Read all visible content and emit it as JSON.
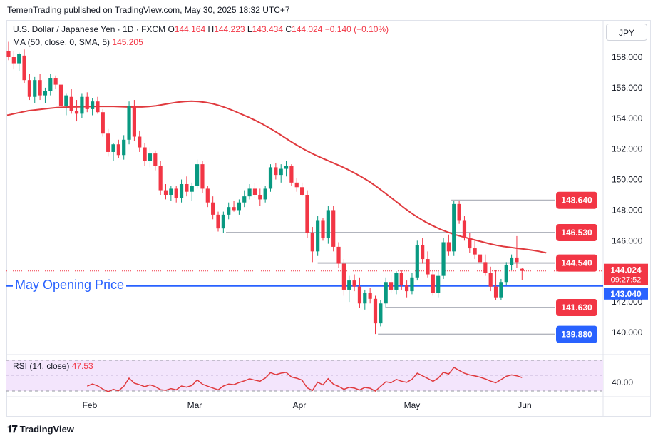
{
  "header": {
    "published": "TemenTrading published on TradingView.com, May 30, 2025 18:32 UTC+7"
  },
  "legend": {
    "symbol": "U.S. Dollar / Japanese Yen · 1D · FXCM",
    "o_label": "O",
    "o_value": "144.164",
    "h_label": "H",
    "h_value": "144.223",
    "l_label": "L",
    "l_value": "143.434",
    "c_label": "C",
    "c_value": "144.024",
    "change": "−0.140 (−0.10%)",
    "ma_label": "MA (50, close, 0, SMA, 5)",
    "ma_value": "145.205",
    "rsi_label": "RSI (14, close)",
    "rsi_value": "47.53"
  },
  "currency": "JPY",
  "annotation": {
    "opening_price_label": "May Opening Price",
    "opening_price": 143.04
  },
  "colors": {
    "up": "#089981",
    "down": "#f23645",
    "ma": "#e03a3e",
    "opening_line": "#2962ff",
    "level_line": "#b2b5be",
    "rsi_line": "#e03a3e",
    "rsi_band": "#f3e5fc"
  },
  "footer": {
    "brand": "TradingView"
  },
  "chart_data": {
    "type": "candlestick",
    "ylim": [
      138.9,
      159.5
    ],
    "y_ticks": [
      "158.000",
      "156.000",
      "154.000",
      "152.000",
      "150.000",
      "148.000",
      "146.000",
      "144.000",
      "142.000",
      "140.000"
    ],
    "x_ticks": [
      "Feb",
      "Mar",
      "Apr",
      "May",
      "Jun"
    ],
    "levels": [
      {
        "label": "148.640",
        "value": 148.64,
        "color": "#f23645"
      },
      {
        "label": "146.530",
        "value": 146.53,
        "color": "#f23645"
      },
      {
        "label": "144.540",
        "value": 144.54,
        "color": "#f23645"
      },
      {
        "label": "141.630",
        "value": 141.63,
        "color": "#f23645"
      },
      {
        "label": "139.880",
        "value": 139.88,
        "color": "#2962ff"
      }
    ],
    "current_price": {
      "label": "144.024",
      "value": 144.024,
      "countdown": "09:27:52"
    },
    "opening_price_tag": {
      "label": "143.040",
      "value": 143.04
    },
    "ohlc": [
      [
        158.4,
        159.0,
        157.8,
        158.0
      ],
      [
        158.0,
        158.4,
        157.2,
        157.6
      ],
      [
        157.6,
        158.3,
        157.1,
        158.2
      ],
      [
        158.1,
        158.5,
        156.3,
        156.5
      ],
      [
        156.5,
        156.9,
        155.2,
        155.4
      ],
      [
        155.4,
        156.7,
        155.0,
        156.5
      ],
      [
        156.5,
        156.9,
        155.2,
        155.5
      ],
      [
        155.5,
        156.0,
        155.0,
        155.8
      ],
      [
        155.8,
        156.9,
        155.5,
        156.6
      ],
      [
        156.6,
        156.8,
        155.9,
        156.2
      ],
      [
        156.2,
        156.4,
        154.6,
        154.8
      ],
      [
        154.8,
        155.6,
        154.2,
        155.5
      ],
      [
        155.4,
        155.9,
        154.3,
        154.5
      ],
      [
        154.5,
        155.2,
        153.8,
        154.3
      ],
      [
        154.3,
        155.6,
        154.0,
        155.4
      ],
      [
        155.4,
        155.7,
        154.4,
        154.6
      ],
      [
        154.6,
        155.3,
        154.2,
        155.1
      ],
      [
        155.1,
        155.4,
        154.3,
        154.4
      ],
      [
        154.4,
        154.6,
        152.8,
        153.0
      ],
      [
        153.0,
        153.3,
        151.5,
        151.8
      ],
      [
        151.8,
        152.4,
        151.2,
        152.3
      ],
      [
        152.3,
        152.6,
        151.4,
        151.6
      ],
      [
        151.6,
        152.9,
        151.3,
        152.6
      ],
      [
        152.6,
        155.1,
        152.3,
        154.8
      ],
      [
        154.8,
        155.2,
        152.5,
        152.8
      ],
      [
        152.8,
        153.2,
        151.8,
        152.1
      ],
      [
        152.1,
        152.4,
        150.9,
        151.2
      ],
      [
        151.2,
        152.1,
        150.8,
        151.7
      ],
      [
        151.7,
        151.9,
        150.6,
        150.9
      ],
      [
        150.9,
        151.2,
        149.0,
        149.3
      ],
      [
        149.3,
        149.7,
        148.7,
        149.0
      ],
      [
        149.0,
        149.6,
        148.6,
        149.4
      ],
      [
        149.4,
        149.6,
        148.5,
        148.8
      ],
      [
        148.8,
        150.0,
        148.5,
        149.7
      ],
      [
        149.7,
        150.2,
        148.9,
        149.2
      ],
      [
        149.2,
        149.8,
        148.6,
        149.6
      ],
      [
        149.6,
        151.3,
        149.4,
        151.0
      ],
      [
        151.0,
        151.2,
        149.1,
        149.4
      ],
      [
        149.4,
        149.6,
        148.2,
        148.5
      ],
      [
        148.5,
        148.9,
        147.4,
        147.7
      ],
      [
        147.7,
        147.9,
        146.6,
        146.8
      ],
      [
        146.8,
        147.9,
        146.5,
        147.7
      ],
      [
        147.7,
        148.5,
        147.4,
        148.2
      ],
      [
        148.2,
        148.6,
        147.9,
        148.0
      ],
      [
        148.0,
        148.7,
        147.7,
        148.5
      ],
      [
        148.5,
        149.3,
        148.2,
        148.9
      ],
      [
        148.9,
        149.7,
        148.7,
        149.4
      ],
      [
        149.4,
        149.8,
        148.8,
        149.0
      ],
      [
        149.0,
        149.4,
        148.3,
        148.7
      ],
      [
        148.7,
        149.6,
        148.5,
        149.4
      ],
      [
        149.4,
        151.0,
        149.2,
        150.8
      ],
      [
        150.8,
        151.1,
        150.0,
        150.3
      ],
      [
        150.3,
        151.0,
        149.8,
        150.7
      ],
      [
        150.7,
        151.2,
        150.2,
        150.9
      ],
      [
        150.9,
        151.0,
        149.6,
        149.8
      ],
      [
        149.8,
        150.1,
        149.2,
        149.5
      ],
      [
        149.5,
        149.8,
        148.9,
        149.0
      ],
      [
        149.0,
        149.3,
        146.2,
        146.5
      ],
      [
        146.5,
        146.9,
        144.6,
        145.3
      ],
      [
        145.3,
        147.6,
        145.0,
        147.3
      ],
      [
        147.3,
        147.5,
        146.0,
        146.2
      ],
      [
        146.2,
        148.3,
        145.8,
        148.0
      ],
      [
        148.0,
        148.3,
        145.3,
        145.6
      ],
      [
        145.6,
        145.9,
        144.2,
        144.5
      ],
      [
        144.5,
        144.8,
        142.4,
        142.8
      ],
      [
        142.8,
        143.7,
        142.0,
        143.4
      ],
      [
        143.4,
        143.8,
        142.7,
        143.0
      ],
      [
        143.0,
        143.6,
        141.6,
        141.9
      ],
      [
        141.9,
        142.8,
        141.5,
        142.6
      ],
      [
        142.6,
        142.9,
        141.9,
        142.2
      ],
      [
        142.2,
        142.4,
        139.9,
        140.6
      ],
      [
        140.6,
        142.1,
        140.4,
        141.9
      ],
      [
        141.9,
        143.6,
        141.6,
        143.3
      ],
      [
        143.3,
        143.8,
        142.6,
        142.8
      ],
      [
        142.8,
        144.0,
        142.5,
        143.9
      ],
      [
        143.9,
        144.1,
        142.8,
        143.1
      ],
      [
        143.1,
        143.4,
        142.3,
        142.7
      ],
      [
        142.7,
        143.9,
        142.5,
        143.6
      ],
      [
        143.6,
        146.0,
        143.4,
        145.7
      ],
      [
        145.7,
        146.2,
        144.5,
        144.8
      ],
      [
        144.8,
        145.3,
        143.6,
        143.8
      ],
      [
        143.8,
        144.1,
        142.4,
        142.6
      ],
      [
        142.6,
        144.0,
        142.3,
        143.7
      ],
      [
        143.7,
        146.2,
        143.5,
        145.9
      ],
      [
        145.9,
        146.4,
        145.0,
        145.3
      ],
      [
        145.3,
        148.6,
        145.0,
        148.4
      ],
      [
        148.4,
        148.6,
        147.1,
        147.3
      ],
      [
        147.3,
        147.6,
        146.0,
        146.2
      ],
      [
        146.2,
        146.5,
        145.2,
        145.5
      ],
      [
        145.5,
        146.0,
        144.8,
        145.1
      ],
      [
        145.1,
        145.4,
        144.3,
        144.6
      ],
      [
        144.6,
        145.1,
        143.7,
        143.9
      ],
      [
        143.9,
        144.3,
        142.7,
        143.0
      ],
      [
        143.0,
        144.1,
        142.1,
        142.3
      ],
      [
        142.3,
        143.5,
        142.1,
        143.3
      ],
      [
        143.3,
        144.6,
        143.1,
        144.4
      ],
      [
        144.4,
        145.1,
        144.1,
        144.9
      ],
      [
        144.9,
        146.3,
        144.2,
        144.6
      ],
      [
        144.164,
        144.223,
        143.434,
        144.024
      ]
    ],
    "ma": [
      154.2,
      154.3,
      154.4,
      154.5,
      154.55,
      154.6,
      154.65,
      154.7,
      154.72,
      154.74,
      154.75,
      154.76,
      154.77,
      154.78,
      154.78,
      154.78,
      154.76,
      154.74,
      154.74,
      154.74,
      154.77,
      154.82,
      154.9,
      154.98,
      155.05,
      155.1,
      155.12,
      155.1,
      155.04,
      154.95,
      154.82,
      154.66,
      154.48,
      154.28,
      154.08,
      153.86,
      153.62,
      153.36,
      153.08,
      152.78,
      152.48,
      152.2,
      151.94,
      151.7,
      151.48,
      151.28,
      151.08,
      150.88,
      150.66,
      150.42,
      150.16,
      149.88,
      149.56,
      149.22,
      148.86,
      148.5,
      148.14,
      147.8,
      147.5,
      147.22,
      146.98,
      146.76,
      146.58,
      146.42,
      146.28,
      146.16,
      146.04,
      145.92,
      145.8,
      145.7,
      145.62,
      145.56,
      145.5,
      145.44,
      145.38,
      145.3,
      145.205
    ],
    "rsi_axis_label": "40.00"
  }
}
